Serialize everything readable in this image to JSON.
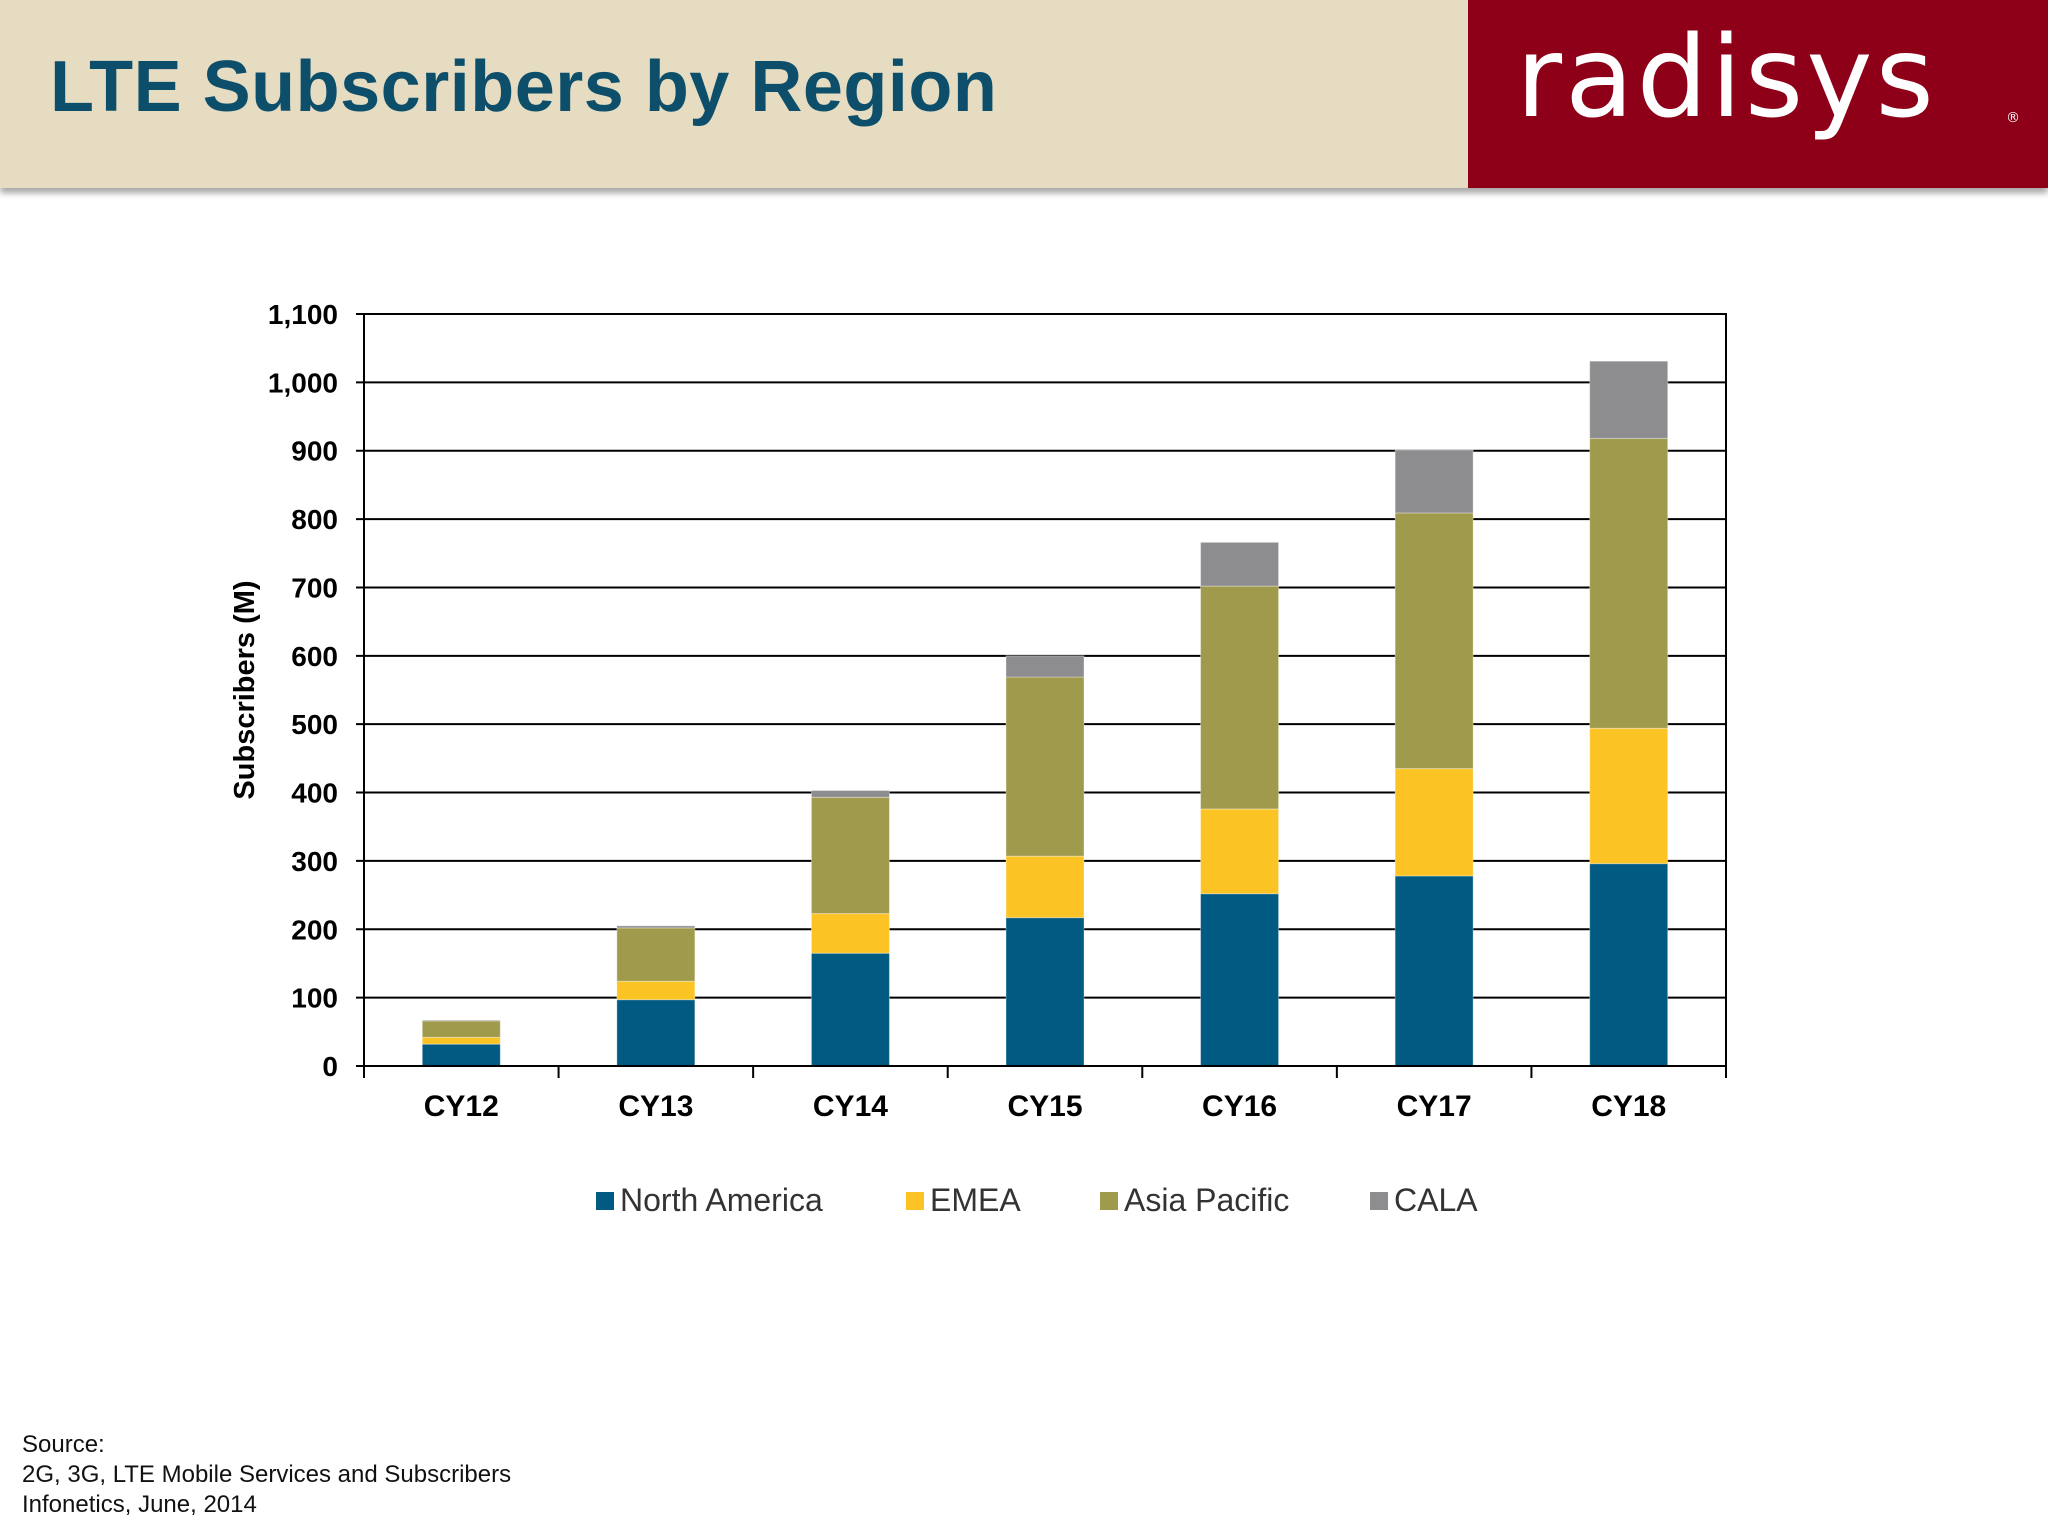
{
  "header": {
    "title": "LTE Subscribers by Region",
    "logo_text": "radisys",
    "logo_mark": "®"
  },
  "source": {
    "label": "Source:",
    "line1": "2G, 3G, LTE Mobile Services and Subscribers",
    "line2": "Infonetics, June, 2014"
  },
  "colors": {
    "header_bg": "#e6dcc1",
    "title": "#0d4f6a",
    "logo_bg": "#8e0018"
  },
  "chart_data": {
    "type": "bar",
    "stacked": true,
    "title": "",
    "xlabel": "",
    "ylabel": "Subscribers (M)",
    "ylim": [
      0,
      1100
    ],
    "yticks": [
      0,
      100,
      200,
      300,
      400,
      500,
      600,
      700,
      800,
      900,
      1000,
      1100
    ],
    "ytick_labels": [
      "0",
      "100",
      "200",
      "300",
      "400",
      "500",
      "600",
      "700",
      "800",
      "900",
      "1,000",
      "1,100"
    ],
    "grid": true,
    "legend_position": "bottom",
    "categories": [
      "CY12",
      "CY13",
      "CY14",
      "CY15",
      "CY16",
      "CY17",
      "CY18"
    ],
    "series": [
      {
        "name": "North America",
        "color": "#005a82",
        "values": [
          32,
          97,
          165,
          217,
          252,
          278,
          296
        ]
      },
      {
        "name": "EMEA",
        "color": "#fcc324",
        "values": [
          10,
          27,
          58,
          90,
          124,
          157,
          198
        ]
      },
      {
        "name": "Asia Pacific",
        "color": "#a09a4c",
        "values": [
          24,
          78,
          170,
          262,
          326,
          374,
          424
        ]
      },
      {
        "name": "CALA",
        "color": "#8d8d8f",
        "values": [
          1,
          3,
          10,
          31,
          64,
          92,
          113
        ]
      }
    ]
  }
}
